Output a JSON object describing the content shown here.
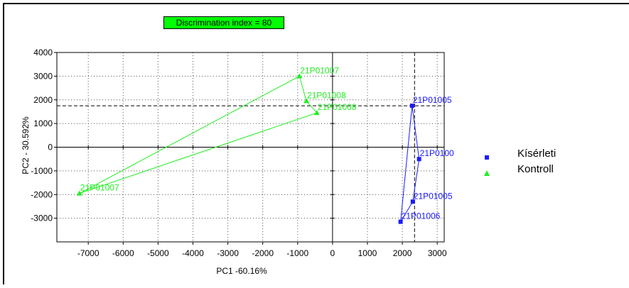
{
  "chart_data": {
    "type": "scatter",
    "title": "Discrimination index = 80",
    "xlabel": "PC1 -60.16%",
    "ylabel": "PC2 - 30.592%",
    "xlim": [
      -7900,
      3200
    ],
    "ylim": [
      -4000,
      4000
    ],
    "xticks": [
      -7000,
      -6000,
      -5000,
      -4000,
      -3000,
      -2000,
      -1000,
      0,
      1000,
      2000,
      3000
    ],
    "yticks": [
      -3000,
      -2000,
      -1000,
      0,
      1000,
      2000,
      3000,
      4000
    ],
    "grid": true,
    "legend_position": "right",
    "reference_lines": {
      "x": 2350,
      "y": 1750
    },
    "series": [
      {
        "name": "Kísérleti",
        "color": "#1a1aff",
        "marker": "square",
        "points": [
          {
            "x": 2280,
            "y": 1750,
            "label": "21P01005"
          },
          {
            "x": 2480,
            "y": -500,
            "label": "21P0100"
          },
          {
            "x": 2300,
            "y": -2300,
            "label": "21P01005"
          },
          {
            "x": 1950,
            "y": -3150,
            "label": "21P01006"
          }
        ]
      },
      {
        "name": "Kontroll",
        "color": "#22ee22",
        "marker": "triangle",
        "points": [
          {
            "x": -950,
            "y": 3000,
            "label": "21P01007"
          },
          {
            "x": -750,
            "y": 1950,
            "label": "21P01008"
          },
          {
            "x": -450,
            "y": 1450,
            "label": "21P01008"
          },
          {
            "x": -7250,
            "y": -1950,
            "label": "21P01007"
          }
        ]
      }
    ]
  }
}
